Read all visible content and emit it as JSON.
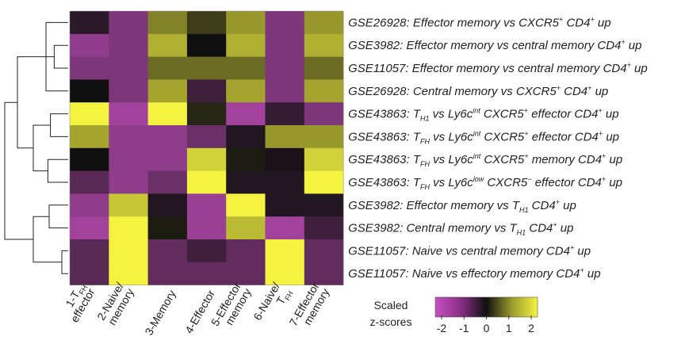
{
  "chart_data": {
    "type": "heatmap",
    "columns": [
      {
        "lines": [
          [
            {
              "t": "1-T"
            },
            {
              "t": "FH",
              "sub": true
            }
          ],
          [
            {
              "t": "effector"
            }
          ]
        ]
      },
      {
        "lines": [
          [
            {
              "t": "2-Naive/"
            }
          ],
          [
            {
              "t": "memory"
            }
          ]
        ]
      },
      {
        "lines": [
          [
            {
              "t": "3-Memory"
            }
          ]
        ]
      },
      {
        "lines": [
          [
            {
              "t": "4-Effector"
            }
          ]
        ]
      },
      {
        "lines": [
          [
            {
              "t": "5-Effector"
            }
          ],
          [
            {
              "t": "memory"
            }
          ]
        ]
      },
      {
        "lines": [
          [
            {
              "t": "6-Naive/"
            }
          ],
          [
            {
              "t": "T"
            },
            {
              "t": "FH",
              "sub": true
            }
          ]
        ]
      },
      {
        "lines": [
          [
            {
              "t": "7-Effector"
            }
          ],
          [
            {
              "t": "memory"
            }
          ]
        ]
      }
    ],
    "rows": [
      {
        "parts": [
          {
            "t": "GSE26928: Effector memory vs CXCR5"
          },
          {
            "t": "+",
            "sup": true
          },
          {
            "t": " CD4"
          },
          {
            "t": "+",
            "sup": true
          },
          {
            "t": " up"
          }
        ]
      },
      {
        "parts": [
          {
            "t": "GSE3982: Effector memory vs central memory CD4"
          },
          {
            "t": "+",
            "sup": true
          },
          {
            "t": " up"
          }
        ]
      },
      {
        "parts": [
          {
            "t": "GSE11057: Effector memory vs central memory CD4"
          },
          {
            "t": "+",
            "sup": true
          },
          {
            "t": " up"
          }
        ]
      },
      {
        "parts": [
          {
            "t": "GSE26928: Central memory vs CXCR5"
          },
          {
            "t": "+",
            "sup": true
          },
          {
            "t": " CD4"
          },
          {
            "t": "+",
            "sup": true
          },
          {
            "t": " up"
          }
        ]
      },
      {
        "parts": [
          {
            "t": "GSE43863: T"
          },
          {
            "t": "H1",
            "sub": true
          },
          {
            "t": " vs Ly6c"
          },
          {
            "t": "int",
            "sup": true
          },
          {
            "t": " CXCR5"
          },
          {
            "t": "+",
            "sup": true
          },
          {
            "t": " effector CD4"
          },
          {
            "t": "+",
            "sup": true
          },
          {
            "t": " up"
          }
        ]
      },
      {
        "parts": [
          {
            "t": "GSE43863: T"
          },
          {
            "t": "FH",
            "sub": true
          },
          {
            "t": " vs Ly6c"
          },
          {
            "t": "int",
            "sup": true
          },
          {
            "t": " CXCR5"
          },
          {
            "t": "+",
            "sup": true
          },
          {
            "t": " effector CD4"
          },
          {
            "t": "+",
            "sup": true
          },
          {
            "t": " up"
          }
        ]
      },
      {
        "parts": [
          {
            "t": "GSE43863: T"
          },
          {
            "t": "FH",
            "sub": true
          },
          {
            "t": " vs Ly6c"
          },
          {
            "t": "int",
            "sup": true
          },
          {
            "t": " CXCR5"
          },
          {
            "t": "+",
            "sup": true
          },
          {
            "t": " memory CD4"
          },
          {
            "t": "+",
            "sup": true
          },
          {
            "t": " up"
          }
        ]
      },
      {
        "parts": [
          {
            "t": "GSE43863: T"
          },
          {
            "t": "FH",
            "sub": true
          },
          {
            "t": " vs Ly6c"
          },
          {
            "t": "low",
            "sup": true
          },
          {
            "t": " CXCR5"
          },
          {
            "t": "−",
            "sup": true
          },
          {
            "t": " effector CD4"
          },
          {
            "t": "+",
            "sup": true
          },
          {
            "t": " up"
          }
        ]
      },
      {
        "parts": [
          {
            "t": "GSE3982: Effector memory vs T"
          },
          {
            "t": "H1",
            "sub": true
          },
          {
            "t": " CD4"
          },
          {
            "t": "+",
            "sup": true
          },
          {
            "t": " up"
          }
        ]
      },
      {
        "parts": [
          {
            "t": "GSE3982: Central memory vs T"
          },
          {
            "t": "H1",
            "sub": true
          },
          {
            "t": " CD4"
          },
          {
            "t": "+",
            "sup": true
          },
          {
            "t": " up"
          }
        ]
      },
      {
        "parts": [
          {
            "t": "GSE11057: Naive vs central memory CD4"
          },
          {
            "t": "+",
            "sup": true
          },
          {
            "t": " up"
          }
        ]
      },
      {
        "parts": [
          {
            "t": "GSE11057: Naive vs effectory memory CD4"
          },
          {
            "t": "+",
            "sup": true
          },
          {
            "t": " up"
          }
        ]
      }
    ],
    "values": [
      [
        -0.3,
        -1.2,
        1.0,
        0.4,
        1.2,
        -1.2,
        1.2
      ],
      [
        -1.4,
        -1.2,
        1.4,
        0.0,
        1.4,
        -1.2,
        1.4
      ],
      [
        -1.2,
        -1.2,
        0.8,
        0.8,
        0.8,
        -1.2,
        0.8
      ],
      [
        0.0,
        -1.2,
        1.3,
        -0.5,
        1.3,
        -1.2,
        1.3
      ],
      [
        2.0,
        -1.6,
        2.0,
        0.2,
        -1.6,
        -0.4,
        -1.2
      ],
      [
        1.3,
        -1.4,
        -1.4,
        -1.0,
        -0.2,
        1.2,
        1.2
      ],
      [
        0.0,
        -1.4,
        -1.4,
        1.7,
        0.1,
        -0.1,
        1.7
      ],
      [
        -0.8,
        -1.4,
        -1.0,
        2.0,
        -0.2,
        -0.2,
        2.0
      ],
      [
        -1.4,
        1.6,
        -0.2,
        -1.5,
        2.0,
        -0.2,
        -0.2
      ],
      [
        -1.6,
        2.0,
        0.1,
        -1.5,
        1.5,
        -1.6,
        -0.5
      ],
      [
        -0.8,
        2.0,
        -0.9,
        -0.5,
        -0.9,
        2.0,
        -0.9
      ],
      [
        -0.8,
        2.0,
        -0.9,
        -0.9,
        -0.9,
        2.0,
        -0.9
      ]
    ],
    "color_range": [
      -2,
      2
    ],
    "colors": {
      "low": "#c64fc0",
      "mid": "#101010",
      "high": "#f3f340"
    },
    "dendrogram": [
      [
        4,
        5,
        0.28
      ],
      [
        6,
        7,
        0.32
      ],
      [
        12,
        13,
        0.55
      ],
      [
        1,
        2,
        0.22
      ],
      [
        0,
        3,
        0.35
      ],
      [
        15,
        16,
        0.45
      ],
      [
        14,
        17,
        0.8
      ],
      [
        8,
        9,
        0.3
      ],
      [
        10,
        11,
        0.1
      ],
      [
        19,
        20,
        0.55
      ],
      [
        18,
        21,
        1.0
      ]
    ],
    "legend": {
      "title": [
        "Scaled",
        "z-scores"
      ],
      "ticks": [
        -2,
        -1,
        0,
        1,
        2
      ]
    }
  }
}
